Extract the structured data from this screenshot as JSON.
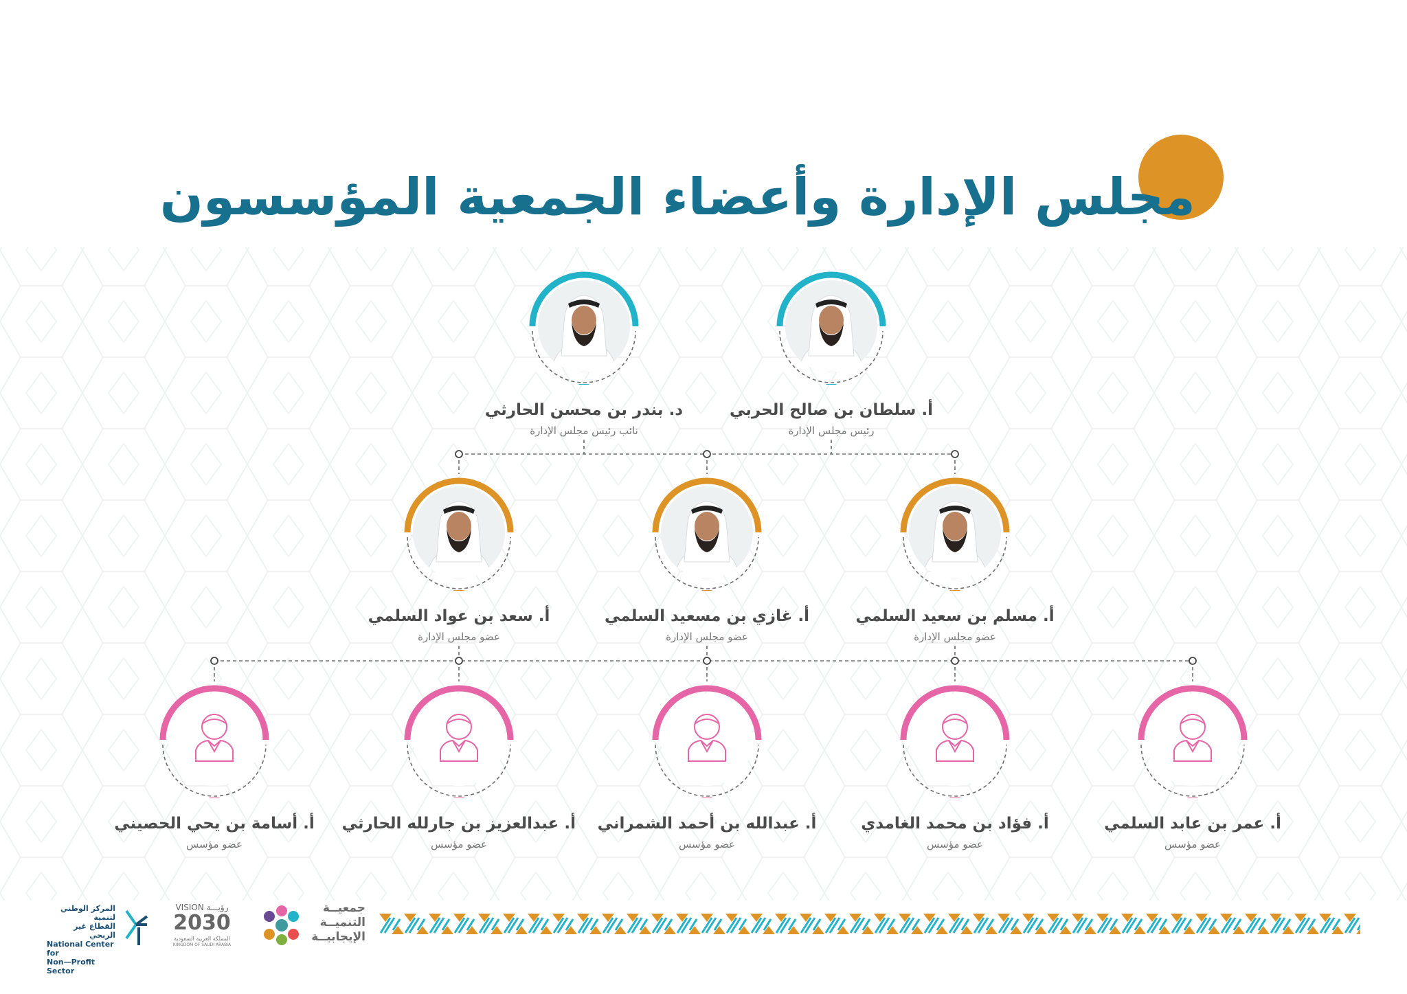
{
  "page": {
    "title": "مجلس الإدارة وأعضاء الجمعية المؤسسون"
  },
  "colors": {
    "title": "#17708e",
    "accent_circle": "#dd9325",
    "tier_board_lead": "#22b3c9",
    "tier_board_member": "#dd9325",
    "tier_founder": "#e565a6",
    "name_text": "#4b4b4b",
    "role_text": "#777777"
  },
  "rows": {
    "leadership": [
      {
        "name": "أ. سلطان بن صالح الحربي",
        "role": "رئيس مجلس الإدارة",
        "photo": "member-photo"
      },
      {
        "name": "د. بندر بن محسن الحارثي",
        "role": "نائب رئيس مجلس الإدارة",
        "photo": "member-photo"
      }
    ],
    "board_members": [
      {
        "name": "أ. مسلم بن سعيد السلمي",
        "role": "عضو مجلس الإدارة",
        "photo": "member-photo"
      },
      {
        "name": "أ. غازي بن مسعيد السلمي",
        "role": "عضو مجلس الإدارة",
        "photo": "member-photo"
      },
      {
        "name": "أ. سعد بن عواد السلمي",
        "role": "عضو مجلس الإدارة",
        "photo": "member-photo"
      }
    ],
    "founders": [
      {
        "name": "أ. عمر بن عابد السلمي",
        "role": "عضو مؤسس",
        "photo": "user-placeholder-icon"
      },
      {
        "name": "أ. فؤاد بن محمد الغامدي",
        "role": "عضو مؤسس",
        "photo": "user-placeholder-icon"
      },
      {
        "name": "أ. عبدالله بن أحمد الشمراني",
        "role": "عضو مؤسس",
        "photo": "user-placeholder-icon"
      },
      {
        "name": "أ. عبدالعزيز بن جارلله الحارثي",
        "role": "عضو مؤسس",
        "photo": "user-placeholder-icon"
      },
      {
        "name": "أ. أسامة بن يحي الحصيني",
        "role": "عضو مؤسس",
        "photo": "user-placeholder-icon"
      }
    ]
  },
  "footer": {
    "positive_dev": {
      "line1": "جمعيــة",
      "line2": "التنميــة",
      "line3": "الإيجابيــة"
    },
    "vision": {
      "top": "VISION رؤيـــة",
      "year": "2030",
      "sub_ar": "المملكة العربية السعودية",
      "sub_en": "KINGDOM OF SAUDI ARABIA"
    },
    "ncnp": {
      "ar1": "المركز الوطني لتنمية",
      "ar2": "القطاع غير الربحي",
      "en1": "National Center for",
      "en2": "Non—Profit Sector"
    }
  }
}
